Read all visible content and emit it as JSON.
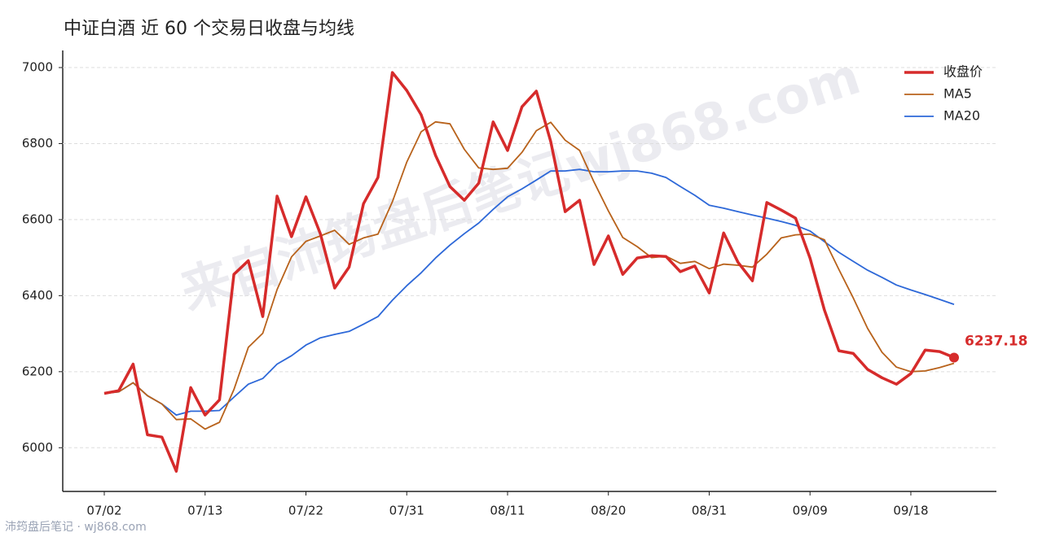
{
  "chart_data": {
    "type": "line",
    "title": "中证白酒 近 60 个交易日收盘与均线",
    "watermark": "来自沛筠盘后笔记wj868.com",
    "footer": "沛筠盘后笔记 · wj868.com",
    "categories": [
      "07/02",
      null,
      null,
      null,
      null,
      null,
      null,
      "07/13",
      null,
      null,
      null,
      null,
      null,
      null,
      "07/22",
      null,
      null,
      null,
      null,
      null,
      null,
      "07/31",
      null,
      null,
      null,
      null,
      null,
      null,
      "08/11",
      null,
      null,
      null,
      null,
      null,
      null,
      "08/20",
      null,
      null,
      null,
      null,
      null,
      null,
      "08/31",
      null,
      null,
      null,
      null,
      null,
      null,
      "09/09",
      null,
      null,
      null,
      null,
      null,
      null,
      "09/18",
      null,
      null,
      null
    ],
    "series": [
      {
        "name": "收盘价",
        "color": "#d62b2b",
        "values": [
          6143,
          6150,
          6220,
          6034,
          6028,
          5938,
          6158,
          6086,
          6126,
          6456,
          6492,
          6345,
          6662,
          6555,
          6660,
          6563,
          6420,
          6475,
          6642,
          6711,
          6987,
          6940,
          6876,
          6769,
          6687,
          6651,
          6696,
          6857,
          6782,
          6897,
          6938,
          6805,
          6621,
          6651,
          6482,
          6557,
          6456,
          6499,
          6505,
          6503,
          6463,
          6478,
          6407,
          6565,
          6488,
          6439,
          6645,
          6625,
          6604,
          6499,
          6362,
          6255,
          6248,
          6206,
          6184,
          6167,
          6195,
          6257,
          6253,
          6237.18
        ]
      },
      {
        "name": "MA5",
        "color": "#b8621b",
        "values": [
          6143,
          6147,
          6171,
          6137,
          6115,
          6074,
          6076,
          6049,
          6067,
          6153,
          6264,
          6301,
          6416,
          6502,
          6543,
          6557,
          6572,
          6535,
          6552,
          6562,
          6647,
          6751,
          6831,
          6857,
          6852,
          6785,
          6736,
          6732,
          6735,
          6777,
          6834,
          6856,
          6809,
          6782,
          6699,
          6623,
          6553,
          6529,
          6500,
          6504,
          6485,
          6490,
          6471,
          6483,
          6480,
          6475,
          6509,
          6552,
          6560,
          6562,
          6547,
          6469,
          6394,
          6314,
          6251,
          6212,
          6200,
          6202,
          6211,
          6222
        ]
      },
      {
        "name": "MA20",
        "color": "#2d68d8",
        "values": [
          6143,
          6147,
          6171,
          6137,
          6115,
          6086,
          6096,
          6096,
          6098,
          6133,
          6167,
          6182,
          6220,
          6242,
          6270,
          6289,
          6298,
          6306,
          6325,
          6345,
          6388,
          6426,
          6460,
          6499,
          6533,
          6563,
          6591,
          6627,
          6660,
          6681,
          6704,
          6728,
          6728,
          6732,
          6726,
          6726,
          6728,
          6728,
          6722,
          6711,
          6687,
          6664,
          6638,
          6630,
          6621,
          6612,
          6604,
          6595,
          6585,
          6570,
          6542,
          6514,
          6490,
          6467,
          6448,
          6428,
          6415,
          6403,
          6390,
          6377
        ]
      }
    ],
    "ylim": [
      5885,
      7045
    ],
    "yticks": [
      6000,
      6200,
      6400,
      6600,
      6800,
      7000
    ],
    "grid": true,
    "legend": "upper right"
  }
}
